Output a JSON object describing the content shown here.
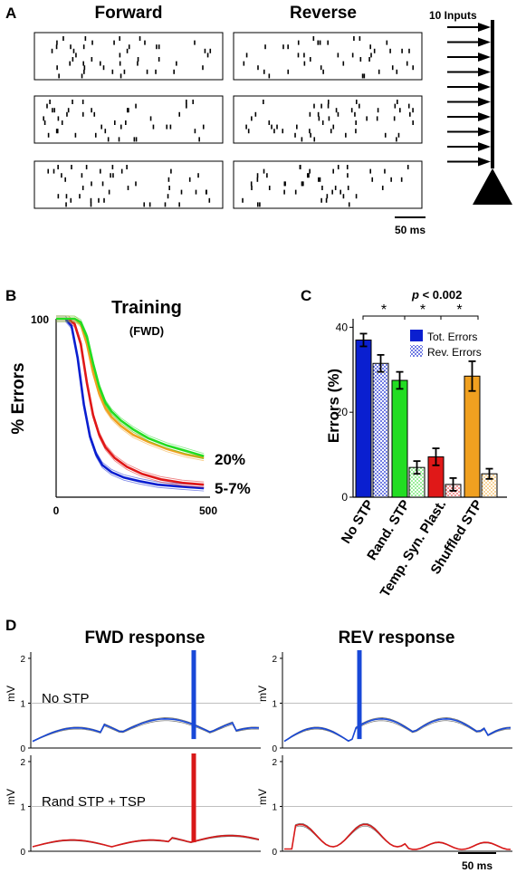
{
  "panel_labels": {
    "a": "A",
    "b": "B",
    "c": "C",
    "d": "D"
  },
  "panel_a": {
    "forward_title": "Forward",
    "reverse_title": "Reverse",
    "inputs_label": "10 Inputs",
    "scale_label": "50 ms"
  },
  "panel_b": {
    "title": "Training",
    "subtitle": "(FWD)",
    "ylabel": "% Errors",
    "y_tick": "100",
    "x_tick_start": "0",
    "x_tick_end": "500",
    "annot_high": "20%",
    "annot_low": "5-7%"
  },
  "panel_c": {
    "ylabel": "Errors (%)",
    "pvalue_p": "p",
    "pvalue_rest": " < 0.002",
    "star": "*",
    "legend_tot": "Tot. Errors",
    "legend_rev": "Rev. Errors",
    "yticks": [
      "0",
      "20",
      "40"
    ],
    "categories": [
      "No STP",
      "Rand. STP",
      "Temp. Syn. Plast.",
      "Shuffled STP"
    ]
  },
  "panel_d": {
    "fwd_title": "FWD response",
    "rev_title": "REV response",
    "ylabel": "mV",
    "row1_label": "No STP",
    "row2_label": "Rand STP + TSP",
    "yticks": [
      "0",
      "1",
      "2"
    ],
    "scale_label": "50 ms"
  },
  "chart_data": [
    {
      "type": "line",
      "title": "Training",
      "subtitle": "(FWD)",
      "ylabel": "% Errors",
      "xlim": [
        0,
        500
      ],
      "ylim": [
        0,
        100
      ],
      "series": [
        {
          "color": "#0a1fd0",
          "x": [
            0,
            30,
            50,
            70,
            90,
            110,
            130,
            150,
            180,
            220,
            270,
            330,
            400,
            480
          ],
          "values": [
            100,
            100,
            96,
            78,
            52,
            34,
            24,
            18,
            14,
            11,
            9,
            7,
            6,
            5
          ]
        },
        {
          "color": "#e01818",
          "x": [
            0,
            40,
            60,
            80,
            100,
            120,
            140,
            160,
            190,
            230,
            280,
            340,
            410,
            480
          ],
          "values": [
            100,
            100,
            97,
            86,
            64,
            46,
            35,
            28,
            22,
            17,
            13,
            10,
            8,
            7
          ]
        },
        {
          "color": "#f0a020",
          "x": [
            0,
            60,
            80,
            100,
            120,
            140,
            160,
            180,
            210,
            250,
            300,
            360,
            420,
            480
          ],
          "values": [
            100,
            100,
            97,
            86,
            70,
            58,
            50,
            45,
            40,
            35,
            31,
            27,
            24,
            22
          ]
        },
        {
          "color": "#22dd22",
          "x": [
            0,
            60,
            80,
            100,
            120,
            140,
            160,
            180,
            210,
            250,
            300,
            360,
            420,
            480
          ],
          "values": [
            100,
            100,
            98,
            90,
            75,
            62,
            53,
            48,
            43,
            38,
            33,
            29,
            26,
            23
          ]
        }
      ]
    },
    {
      "type": "bar",
      "ylabel": "Errors (%)",
      "ylim": [
        0,
        42
      ],
      "categories": [
        "No STP",
        "Rand. STP",
        "Temp. Syn. Plast.",
        "Shuffled STP"
      ],
      "colors": [
        "#0a1fd0",
        "#22dd22",
        "#e01818",
        "#f0a020"
      ],
      "series": [
        {
          "name": "Tot. Errors",
          "values": [
            37,
            27.5,
            9.5,
            28.5
          ],
          "errors": [
            1.5,
            2,
            2,
            3.5
          ]
        },
        {
          "name": "Rev. Errors",
          "values": [
            31.5,
            7,
            3,
            5.5
          ],
          "errors": [
            2,
            1.5,
            1.5,
            1.2
          ]
        }
      ]
    }
  ]
}
